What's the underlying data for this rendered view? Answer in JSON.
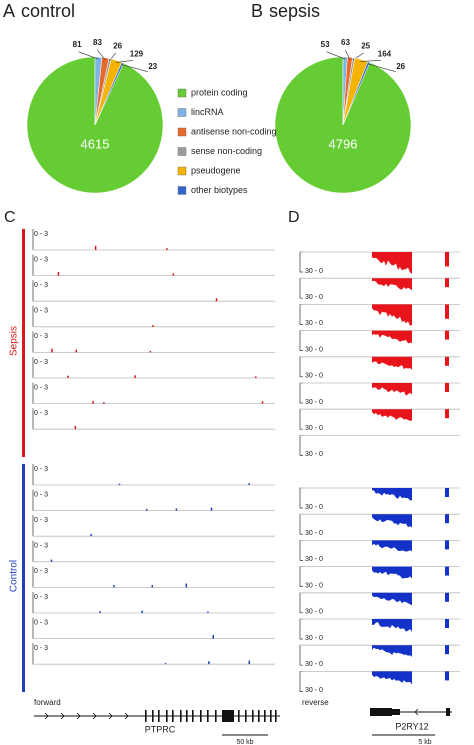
{
  "chart_data": [
    {
      "type": "pie",
      "panel_label": "A",
      "title": "control",
      "categories": [
        "protein coding",
        "lincRNA",
        "antisense non-coding",
        "sense non-coding",
        "pseudogene",
        "other biotypes"
      ],
      "colors": [
        "#66cc33",
        "#7fb2e5",
        "#e8692a",
        "#9a9a9a",
        "#f5b400",
        "#3366cc"
      ],
      "values": [
        4615,
        81,
        83,
        26,
        129,
        23
      ]
    },
    {
      "type": "pie",
      "panel_label": "B",
      "title": "sepsis",
      "values": [
        4796,
        53,
        63,
        25,
        164,
        26
      ]
    }
  ],
  "panels": [
    {
      "label": "C",
      "strand": "forward",
      "gene": "PTPRC",
      "scale": "50 kb",
      "groups": [
        {
          "name": "Sepsis",
          "color": "#d7191c",
          "ranges": [
            "0 - 3",
            "0 - 3",
            "0 - 3",
            "0 - 3",
            "0 - 3",
            "0 - 3",
            "0 - 3",
            "0 - 3"
          ]
        },
        {
          "name": "Control",
          "color": "#1f3fbf",
          "ranges": [
            "0 - 3",
            "0 - 3",
            "0 - 3",
            "0 - 3",
            "0 - 3",
            "0 - 3",
            "0 - 3",
            "0 - 3"
          ]
        }
      ]
    },
    {
      "label": "D",
      "strand": "reverse",
      "gene": "P2RY12",
      "scale": "5 kb",
      "groups": [
        {
          "name": "Sepsis",
          "color": "#e8141c",
          "ranges": [
            "30 - 0",
            "30 - 0",
            "30 - 0",
            "30 - 0",
            "30 - 0",
            "30 - 0",
            "30 - 0",
            "30 - 0"
          ]
        },
        {
          "name": "Control",
          "color": "#1432c8",
          "ranges": [
            "30 - 0",
            "30 - 0",
            "30 - 0",
            "30 - 0",
            "30 - 0",
            "30 - 0",
            "30 - 0",
            "30 - 0"
          ]
        }
      ]
    }
  ]
}
